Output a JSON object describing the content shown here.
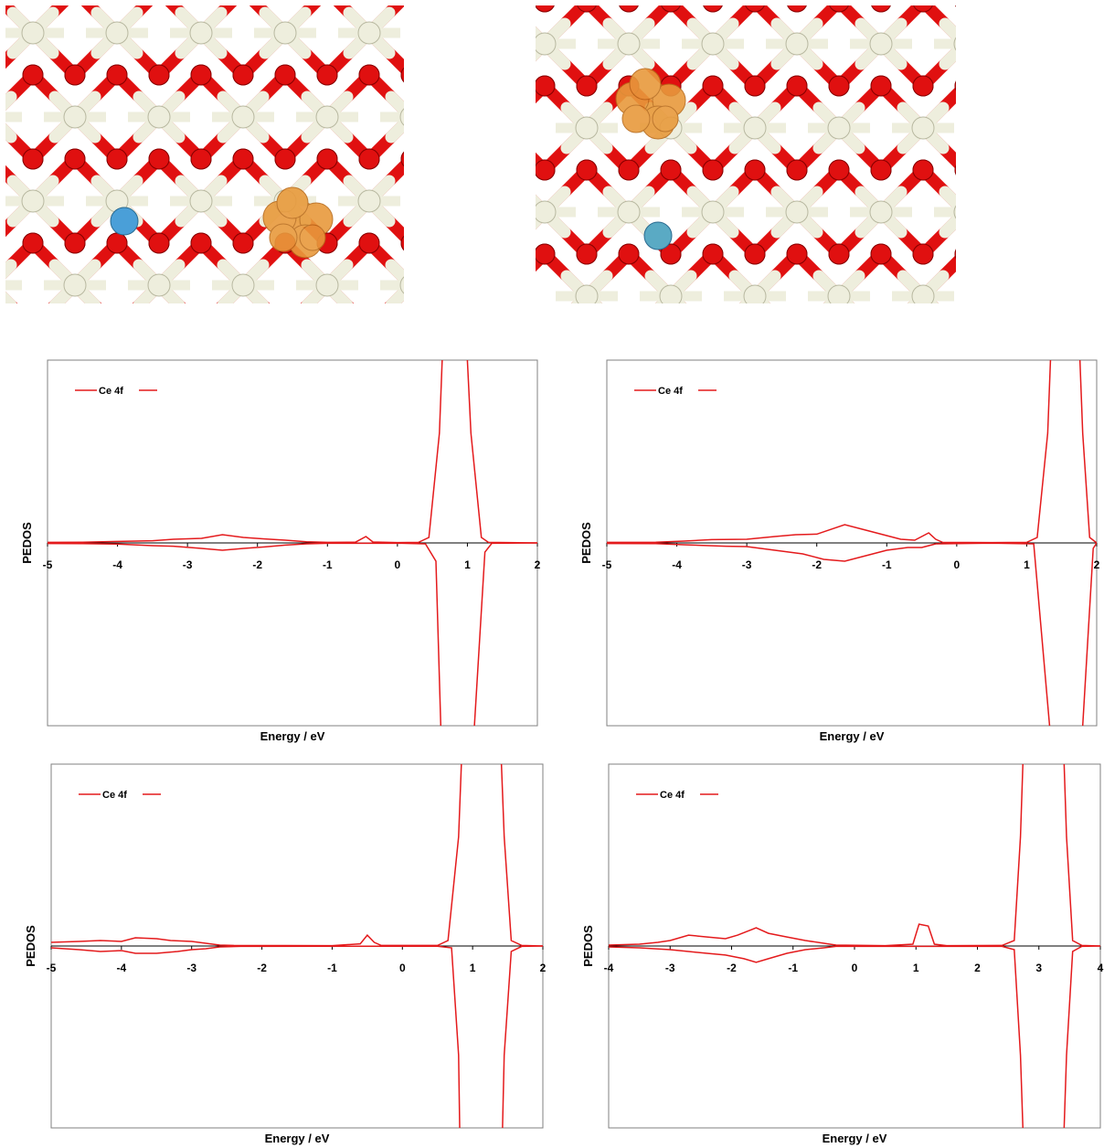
{
  "structures": [
    {
      "name": "structure-left"
    },
    {
      "name": "structure-right"
    }
  ],
  "colors": {
    "ce_atom": "#eeeedd",
    "o_atom": "#e01010",
    "dopant_left": "#4a9fd8",
    "dopant_right": "#5aaac4",
    "spin_density": "#e89a3c",
    "pedos_line": "#e41a1c"
  },
  "chart_data": [
    {
      "type": "line",
      "xlabel": "Energy / eV",
      "ylabel": "PEDOS",
      "xlim": [
        -5,
        2
      ],
      "xticks": [
        -5,
        -4,
        -3,
        -2,
        -1,
        0,
        1,
        2
      ],
      "legend": "top-left",
      "series": [
        {
          "name": "Ce 4f",
          "up": [
            [
              -5,
              0.3
            ],
            [
              -4.5,
              0.4
            ],
            [
              -4,
              0.8
            ],
            [
              -3.5,
              1.2
            ],
            [
              -3.2,
              2
            ],
            [
              -2.8,
              2.5
            ],
            [
              -2.5,
              4.5
            ],
            [
              -2.2,
              3
            ],
            [
              -1.9,
              2.2
            ],
            [
              -1.6,
              1.5
            ],
            [
              -1.3,
              0.6
            ],
            [
              -1,
              0.3
            ],
            [
              -0.6,
              0.4
            ],
            [
              -0.45,
              3.5
            ],
            [
              -0.35,
              0.5
            ],
            [
              0,
              0.2
            ],
            [
              0.3,
              0.3
            ],
            [
              0.45,
              3
            ],
            [
              0.6,
              60
            ],
            [
              0.65,
              110
            ],
            [
              0.85,
              110
            ],
            [
              1.0,
              100
            ],
            [
              1.05,
              60
            ],
            [
              1.2,
              3
            ],
            [
              1.3,
              0.3
            ],
            [
              2,
              0
            ]
          ],
          "down": [
            [
              -5,
              -0.3
            ],
            [
              -4.5,
              -0.4
            ],
            [
              -4,
              -0.6
            ],
            [
              -3.5,
              -1.5
            ],
            [
              -3.2,
              -1.8
            ],
            [
              -2.8,
              -3
            ],
            [
              -2.5,
              -4
            ],
            [
              -2.2,
              -3
            ],
            [
              -1.9,
              -2.2
            ],
            [
              -1.6,
              -1.2
            ],
            [
              -1.3,
              -0.5
            ],
            [
              -1,
              -0.2
            ],
            [
              0,
              -0.1
            ],
            [
              0.4,
              -0.5
            ],
            [
              0.55,
              -10
            ],
            [
              0.62,
              -100
            ],
            [
              0.65,
              -110
            ],
            [
              1.05,
              -110
            ],
            [
              1.1,
              -100
            ],
            [
              1.25,
              -5
            ],
            [
              1.35,
              -0.2
            ],
            [
              2,
              0
            ]
          ]
        }
      ]
    },
    {
      "type": "line",
      "xlabel": "Energy / eV",
      "ylabel": "PEDOS",
      "xlim": [
        -5,
        2
      ],
      "xticks": [
        -5,
        -4,
        -3,
        -2,
        -1,
        0,
        1,
        2
      ],
      "legend": "top-left",
      "series": [
        {
          "name": "Ce 4f",
          "up": [
            [
              -5,
              0.3
            ],
            [
              -4.3,
              0.4
            ],
            [
              -3.9,
              1
            ],
            [
              -3.5,
              1.8
            ],
            [
              -3,
              2
            ],
            [
              -2.6,
              3.5
            ],
            [
              -2.3,
              4.5
            ],
            [
              -2.0,
              4.8
            ],
            [
              -1.6,
              10
            ],
            [
              -1.3,
              7
            ],
            [
              -1.0,
              4
            ],
            [
              -0.8,
              2
            ],
            [
              -0.6,
              1.5
            ],
            [
              -0.4,
              5.5
            ],
            [
              -0.3,
              2
            ],
            [
              -0.2,
              0.3
            ],
            [
              0.5,
              0.2
            ],
            [
              1.0,
              0.3
            ],
            [
              1.15,
              3
            ],
            [
              1.3,
              60
            ],
            [
              1.35,
              110
            ],
            [
              1.75,
              110
            ],
            [
              1.8,
              60
            ],
            [
              1.9,
              3
            ],
            [
              2,
              0
            ]
          ],
          "down": [
            [
              -5,
              -0.3
            ],
            [
              -4.3,
              -0.4
            ],
            [
              -3.9,
              -1
            ],
            [
              -3.3,
              -1.8
            ],
            [
              -3,
              -2
            ],
            [
              -2.6,
              -4
            ],
            [
              -2.2,
              -6
            ],
            [
              -1.9,
              -9
            ],
            [
              -1.6,
              -10
            ],
            [
              -1.3,
              -7
            ],
            [
              -1.0,
              -4
            ],
            [
              -0.7,
              -2.5
            ],
            [
              -0.5,
              -2.5
            ],
            [
              -0.3,
              -0.5
            ],
            [
              0.5,
              -0.1
            ],
            [
              1.1,
              -0.5
            ],
            [
              1.35,
              -110
            ],
            [
              1.75,
              -110
            ],
            [
              1.8,
              -100
            ],
            [
              1.95,
              -3
            ],
            [
              2,
              0
            ]
          ]
        }
      ]
    },
    {
      "type": "line",
      "xlabel": "Energy / eV",
      "ylabel": "PEDOS",
      "xlim": [
        -5,
        2
      ],
      "xticks": [
        -5,
        -4,
        -3,
        -2,
        -1,
        0,
        1,
        2
      ],
      "legend": "top-left",
      "series": [
        {
          "name": "Ce 4f",
          "up": [
            [
              -5,
              2
            ],
            [
              -4.6,
              2.5
            ],
            [
              -4.3,
              3
            ],
            [
              -4.0,
              2.5
            ],
            [
              -3.8,
              4.5
            ],
            [
              -3.5,
              4
            ],
            [
              -3.3,
              3
            ],
            [
              -3.0,
              2.5
            ],
            [
              -2.8,
              1.5
            ],
            [
              -2.6,
              0.5
            ],
            [
              -2.4,
              0.3
            ],
            [
              -1,
              0.2
            ],
            [
              -0.6,
              1.2
            ],
            [
              -0.5,
              6
            ],
            [
              -0.4,
              2
            ],
            [
              -0.3,
              0.3
            ],
            [
              0.5,
              0.3
            ],
            [
              0.65,
              3
            ],
            [
              0.8,
              60
            ],
            [
              0.85,
              110
            ],
            [
              1.4,
              110
            ],
            [
              1.45,
              60
            ],
            [
              1.55,
              3
            ],
            [
              1.7,
              0.3
            ],
            [
              2,
              0
            ]
          ],
          "down": [
            [
              -5,
              -1
            ],
            [
              -4.6,
              -2
            ],
            [
              -4.3,
              -3
            ],
            [
              -4.0,
              -2.5
            ],
            [
              -3.8,
              -4
            ],
            [
              -3.5,
              -4
            ],
            [
              -3.2,
              -3
            ],
            [
              -3.0,
              -2
            ],
            [
              -2.8,
              -1.5
            ],
            [
              -2.6,
              -0.5
            ],
            [
              -2.3,
              -0.2
            ],
            [
              0.5,
              -0.1
            ],
            [
              0.7,
              -1
            ],
            [
              0.8,
              -60
            ],
            [
              0.82,
              -110
            ],
            [
              1.42,
              -110
            ],
            [
              1.45,
              -60
            ],
            [
              1.55,
              -3
            ],
            [
              1.7,
              -0.2
            ],
            [
              2,
              0
            ]
          ]
        }
      ]
    },
    {
      "type": "line",
      "xlabel": "Energy / eV",
      "ylabel": "PEDOS",
      "xlim": [
        -4,
        4
      ],
      "xticks": [
        -4,
        -3,
        -2,
        -1,
        0,
        1,
        2,
        3,
        4
      ],
      "legend": "top-left",
      "series": [
        {
          "name": "Ce 4f",
          "up": [
            [
              -4,
              0.5
            ],
            [
              -3.5,
              1
            ],
            [
              -3.2,
              2
            ],
            [
              -3.0,
              3
            ],
            [
              -2.7,
              6
            ],
            [
              -2.4,
              5
            ],
            [
              -2.1,
              4
            ],
            [
              -1.9,
              6
            ],
            [
              -1.6,
              10
            ],
            [
              -1.4,
              7
            ],
            [
              -1.1,
              5
            ],
            [
              -0.8,
              3
            ],
            [
              -0.5,
              1.5
            ],
            [
              -0.3,
              0.5
            ],
            [
              0.5,
              0.2
            ],
            [
              0.95,
              1
            ],
            [
              1.05,
              12
            ],
            [
              1.2,
              11
            ],
            [
              1.3,
              1
            ],
            [
              1.5,
              0.2
            ],
            [
              2.4,
              0.3
            ],
            [
              2.6,
              3
            ],
            [
              2.7,
              60
            ],
            [
              2.75,
              110
            ],
            [
              3.4,
              110
            ],
            [
              3.45,
              60
            ],
            [
              3.55,
              3
            ],
            [
              3.7,
              0.3
            ],
            [
              4,
              0
            ]
          ],
          "down": [
            [
              -4,
              -0.5
            ],
            [
              -3.5,
              -1
            ],
            [
              -3.0,
              -2
            ],
            [
              -2.7,
              -3
            ],
            [
              -2.4,
              -4
            ],
            [
              -2.1,
              -5
            ],
            [
              -1.8,
              -7
            ],
            [
              -1.6,
              -9
            ],
            [
              -1.4,
              -7
            ],
            [
              -1.1,
              -4
            ],
            [
              -0.8,
              -2
            ],
            [
              -0.5,
              -1
            ],
            [
              -0.3,
              -0.2
            ],
            [
              2.4,
              -0.2
            ],
            [
              2.6,
              -2
            ],
            [
              2.7,
              -60
            ],
            [
              2.75,
              -110
            ],
            [
              3.4,
              -110
            ],
            [
              3.45,
              -60
            ],
            [
              3.55,
              -3
            ],
            [
              3.7,
              -0.2
            ],
            [
              4,
              0
            ]
          ]
        }
      ]
    }
  ]
}
